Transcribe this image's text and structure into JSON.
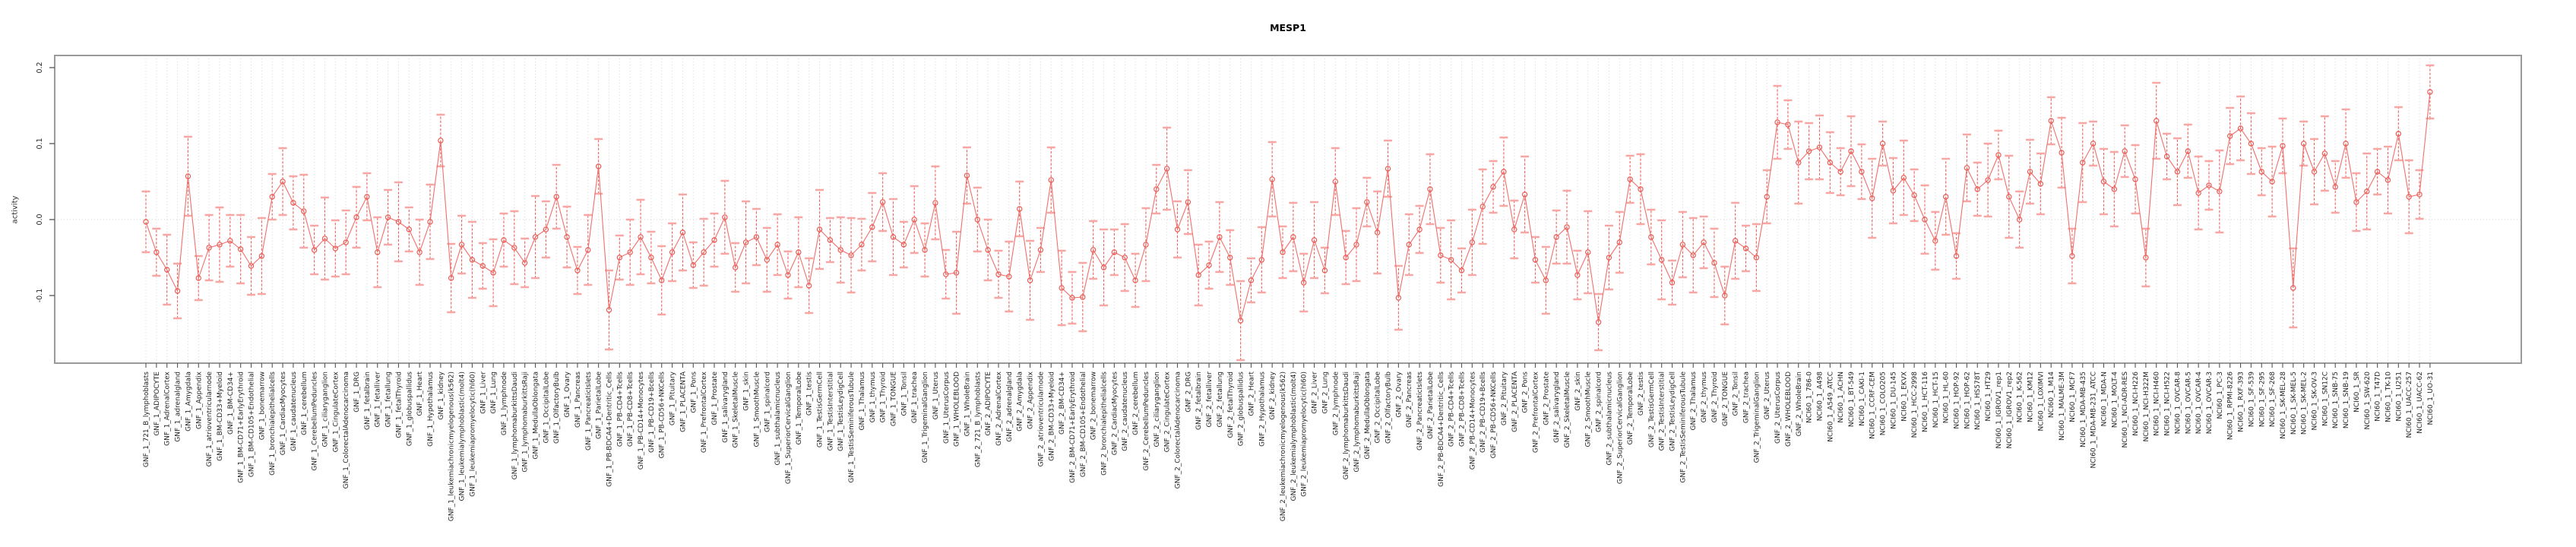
{
  "figure": {
    "title": "MESP1",
    "y_axis_label": "activity"
  },
  "chart_data": {
    "type": "line",
    "title": "MESP1",
    "xlabel": "",
    "ylabel": "activity",
    "ylim": [
      -0.189,
      0.216
    ],
    "yticks": [
      {
        "label": "0.2",
        "value": 0.2
      },
      {
        "label": "0.1",
        "value": 0.1
      },
      {
        "label": "0.0",
        "value": 0.0
      },
      {
        "label": "-0.1",
        "value": -0.1
      }
    ],
    "grid": "dotted vertical gridline per category, dotted horizontal line at 0",
    "legend": "none",
    "marker": "open-circle",
    "series_color": "#e95e59",
    "line_color": "#ef706c",
    "errorbar_color": "#ee615c",
    "errorbar_cap_color": "#f7a6a3",
    "gridline_color": "#d4d4d4",
    "frame_color": "#9a9a9a",
    "categories": [
      "GNF_1_721_B_lymphoblasts",
      "GNF_1_ADIPOCYTE",
      "GNF_1_AdrenalCortex",
      "GNF_1_adrenalgland",
      "GNF_1_Amygdala",
      "GNF_1_Appendix",
      "GNF_1_atrioventricularnode",
      "GNF_1_BM-CD33+Myeloid",
      "GNF_1_BM-CD34+",
      "GNF_1_BM-CD71+EarlyErythroid",
      "GNF_1_BM-CD105+Endothelial",
      "GNF_1_bonemarrow",
      "GNF_1_bronchialepithelialcells",
      "GNF_1_CardiacMyocytes",
      "GNF_1_caudatenucleus",
      "GNF_1_cerebellum",
      "GNF_1_CerebellumPeduncles",
      "GNF_1_ciliaryganglion",
      "GNF_1_CingulateCortex",
      "GNF_1_ColorectalAdenocarcinoma",
      "GNF_1_DRG",
      "GNF_1_fetalbrain",
      "GNF_1_fetalliver",
      "GNF_1_fetallung",
      "GNF_1_fetalThyroid",
      "GNF_1_globuspallidus",
      "GNF_1_Heart",
      "GNF_1_Hypothalamus",
      "GNF_1_kidney",
      "GNF_1_leukemiachronicmyelogenous(k562)",
      "GNF_1_leukemialymphoblastic(molt4)",
      "GNF_1_leukemiapromyelocytic(hl60)",
      "GNF_1_Liver",
      "GNF_1_Lung",
      "GNF_1_lymphnode",
      "GNF_1_lymphomaburkittsDaudi",
      "GNF_1_lymphomaburkittsRaji",
      "GNF_1_MedullaOblongata",
      "GNF_1_OccipitalLobe",
      "GNF_1_OlfactoryBulb",
      "GNF_1_Ovary",
      "GNF_1_Pancreas",
      "GNF_1_PancreaticIslets",
      "GNF_1_ParietalLobe",
      "GNF_1_PB-BDCA4+Dentritic_Cells",
      "GNF_1_PB-CD4+Tcells",
      "GNF_1_PB-CD8+Tcells",
      "GNF_1_PB-CD14+Monocytes",
      "GNF_1_PB-CD19+Bcells",
      "GNF_1_PB-CD56+NKCells",
      "GNF_1_Pituitary",
      "GNF_1_PLACENTA",
      "GNF_1_Pons",
      "GNF_1_PrefrontalCortex",
      "GNF_1_Prostate",
      "GNF_1_salivarygland",
      "GNF_1_SkeletalMuscle",
      "GNF_1_skin",
      "GNF_1_SmoothMuscle",
      "GNF_1_spinalcord",
      "GNF_1_subthalamicnucleus",
      "GNF_1_SuperiorCervicalGanglion",
      "GNF_1_TemporalLobe",
      "GNF_1_testis",
      "GNF_1_TestisGermCell",
      "GNF_1_TestisInterstitial",
      "GNF_1_TestisLeydigCell",
      "GNF_1_TestisSeminiferousTubule",
      "GNF_1_Thalamus",
      "GNF_1_thymus",
      "GNF_1_Thyroid",
      "GNF_1_TONGUE",
      "GNF_1_Tonsil",
      "GNF_1_trachea",
      "GNF_1_TrigeminalGanglion",
      "GNF_1_Uterus",
      "GNF_1_UterusCorpus",
      "GNF_1_WHOLEBLOOD",
      "GNF_1_WholeBrain",
      "GNF_2_721_B_lymphoblasts",
      "GNF_2_ADIPOCYTE",
      "GNF_2_AdrenalCortex",
      "GNF_2_adrenalgland",
      "GNF_2_Amygdala",
      "GNF_2_Appendix",
      "GNF_2_atrioventricularnode",
      "GNF_2_BM-CD33+Myeloid",
      "GNF_2_BM-CD34+",
      "GNF_2_BM-CD71+EarlyErythroid",
      "GNF_2_BM-CD105+Endothelial",
      "GNF_2_bonemarrow",
      "GNF_2_bronchialepithelialcells",
      "GNF_2_CardiacMyocytes",
      "GNF_2_caudatenucleus",
      "GNF_2_cerebellum",
      "GNF_2_CerebellumPeduncles",
      "GNF_2_ciliaryganglion",
      "GNF_2_CingulateCortex",
      "GNF_2_ColorectalAdenocarcinoma",
      "GNF_2_DRG",
      "GNF_2_fetalbrain",
      "GNF_2_fetalliver",
      "GNF_2_fetallung",
      "GNF_2_fetalThyroid",
      "GNF_2_globuspallidus",
      "GNF_2_Heart",
      "GNF_2_Hypothalamus",
      "GNF_2_kidney",
      "GNF_2_leukemiachronicmyelogenous(k562)",
      "GNF_2_leukemialymphoblastic(molt4)",
      "GNF_2_leukemiapromyelocytic(hl60)",
      "GNF_2_Liver",
      "GNF_2_Lung",
      "GNF_2_lymphnode",
      "GNF_2_lymphomaburkittsDaudi",
      "GNF_2_lymphomaburkittsRaji",
      "GNF_2_MedullaOblongata",
      "GNF_2_OccipitalLobe",
      "GNF_2_OlfactoryBulb",
      "GNF_2_Ovary",
      "GNF_2_Pancreas",
      "GNF_2_PancreaticIslets",
      "GNF_2_ParietalLobe",
      "GNF_2_PB-BDCA4+Dentritic_Cells",
      "GNF_2_PB-CD4+Tcells",
      "GNF_2_PB-CD8+Tcells",
      "GNF_2_PB-CD14+Monocytes",
      "GNF_2_PB-CD19+Bcells",
      "GNF_2_PB-CD56+NKCells",
      "GNF_2_Pituitary",
      "GNF_2_PLACENTA",
      "GNF_2_Pons",
      "GNF_2_PrefrontalCortex",
      "GNF_2_Prostate",
      "GNF_2_salivarygland",
      "GNF_2_SkeletalMuscle",
      "GNF_2_skin",
      "GNF_2_SmoothMuscle",
      "GNF_2_spinalcord",
      "GNF_2_subthalamicnucleus",
      "GNF_2_SuperiorCervicalGanglion",
      "GNF_2_TemporalLobe",
      "GNF_2_testis",
      "GNF_2_TestisGermCell",
      "GNF_2_TestisInterstitial",
      "GNF_2_TestisLeydigCell",
      "GNF_2_TestisSeminiferousTubule",
      "GNF_2_Thalamus",
      "GNF_2_thymus",
      "GNF_2_Thyroid",
      "GNF_2_TONGUE",
      "GNF_2_Tonsil",
      "GNF_2_trachea",
      "GNF_2_TrigeminalGanglion",
      "GNF_2_Uterus",
      "GNF_2_UterusCorpus",
      "GNF_2_WHOLEBLOOD",
      "GNF_2_WholeBrain",
      "NCI60_1_786-0",
      "NCI60_1_A498",
      "NCI60_1_A549_ATCC",
      "NCI60_1_ACHN",
      "NCI60_1_BT-549",
      "NCI60_1_CAKI-1",
      "NCI60_1_CCRF-CEM",
      "NCI60_1_COLO205",
      "NCI60_1_DU-145",
      "NCI60_1_EKVX",
      "NCI60_1_HCC-2998",
      "NCI60_1_HCT-116",
      "NCI60_1_HCT-15",
      "NCI60_1_HL-60",
      "NCI60_1_HOP-92",
      "NCI60_1_HOP-62",
      "NCI60_1_HS578T",
      "NCI60_1_HT29",
      "NCI60_1_IGROV1_rep1",
      "NCI60_1_IGROV1_rep2",
      "NCI60_1_K-562",
      "NCI60_1_KM12",
      "NCI60_1_LOXIMVI",
      "NCI60_1_M14",
      "NCI60_1_MALME-3M",
      "NCI60_1_MCF7",
      "NCI60_1_MDA-MB-435",
      "NCI60_1_MDA-MB-231_ATCC",
      "NCI60_1_MDA-N",
      "NCI60_1_MOLT-4",
      "NCI60_1_NCI-ADR-RES",
      "NCI60_1_NCI-H226",
      "NCI60_1_NCI-H322M",
      "NCI60_1_NCI-H460",
      "NCI60_1_NCI-H522",
      "NCI60_1_OVCAR-8",
      "NCI60_1_OVCAR-5",
      "NCI60_1_OVCAR-4",
      "NCI60_1_OVCAR-3",
      "NCI60_1_PC-3",
      "NCI60_1_RPMI-8226",
      "NCI60_1_RXF-393",
      "NCI60_1_SF-539",
      "NCI60_1_SF-295",
      "NCI60_1_SF-268",
      "NCI60_1_SK-MEL-28",
      "NCI60_1_SK-MEL-5",
      "NCI60_1_SK-MEL-2",
      "NCI60_1_SK-OV-3",
      "NCI60_1_SN12C",
      "NCI60_1_SNB-75",
      "NCI60_1_SNB-19",
      "NCI60_1_SR",
      "NCI60_1_SW-620",
      "NCI60_1_T47D",
      "NCI60_1_TK-10",
      "NCI60_1_U251",
      "NCI60_1_UACC-257",
      "NCI60_1_UACC-62",
      "NCI60_1_UO-31"
    ],
    "values": [
      -0.003,
      -0.043,
      -0.066,
      -0.094,
      0.057,
      -0.077,
      -0.037,
      -0.033,
      -0.028,
      -0.039,
      -0.061,
      -0.048,
      0.03,
      0.05,
      0.022,
      0.011,
      -0.04,
      -0.025,
      -0.038,
      -0.03,
      0.003,
      0.03,
      -0.043,
      0.003,
      -0.003,
      -0.013,
      -0.043,
      -0.003,
      0.104,
      -0.077,
      -0.033,
      -0.053,
      -0.061,
      -0.07,
      -0.027,
      -0.037,
      -0.057,
      -0.023,
      -0.013,
      0.03,
      -0.023,
      -0.067,
      -0.04,
      0.07,
      -0.119,
      -0.05,
      -0.043,
      -0.023,
      -0.05,
      -0.08,
      -0.043,
      -0.017,
      -0.06,
      -0.043,
      -0.027,
      0.003,
      -0.063,
      -0.03,
      -0.023,
      -0.053,
      -0.033,
      -0.073,
      -0.043,
      -0.087,
      -0.013,
      -0.027,
      -0.04,
      -0.047,
      -0.033,
      -0.01,
      0.023,
      -0.023,
      -0.033,
      0.0,
      -0.04,
      0.022,
      -0.072,
      -0.07,
      0.058,
      0.0,
      -0.04,
      -0.072,
      -0.075,
      0.014,
      -0.08,
      -0.04,
      0.052,
      -0.09,
      -0.103,
      -0.102,
      -0.04,
      -0.063,
      -0.043,
      -0.05,
      -0.08,
      -0.033,
      0.04,
      0.067,
      -0.013,
      0.023,
      -0.073,
      -0.06,
      -0.023,
      -0.05,
      -0.133,
      -0.08,
      -0.053,
      0.053,
      -0.043,
      -0.023,
      -0.083,
      -0.027,
      -0.067,
      0.05,
      -0.05,
      -0.033,
      0.023,
      -0.017,
      0.067,
      -0.103,
      -0.033,
      -0.013,
      0.04,
      -0.047,
      -0.053,
      -0.067,
      -0.03,
      0.017,
      0.043,
      0.063,
      -0.013,
      0.033,
      -0.053,
      -0.08,
      -0.023,
      -0.01,
      -0.073,
      -0.043,
      -0.135,
      -0.05,
      -0.03,
      0.053,
      0.04,
      -0.023,
      -0.053,
      -0.083,
      -0.033,
      -0.047,
      -0.03,
      -0.057,
      -0.1,
      -0.028,
      -0.038,
      -0.05,
      0.03,
      0.128,
      0.125,
      0.075,
      0.09,
      0.095,
      0.075,
      0.063,
      0.09,
      0.063,
      0.028,
      0.1,
      0.038,
      0.055,
      0.032,
      0.0,
      -0.028,
      0.03,
      -0.048,
      0.068,
      0.04,
      0.052,
      0.085,
      0.03,
      0.0,
      0.063,
      0.047,
      0.13,
      0.088,
      -0.048,
      0.075,
      0.1,
      0.05,
      0.04,
      0.09,
      0.053,
      -0.05,
      0.13,
      0.083,
      0.063,
      0.09,
      0.035,
      0.045,
      0.037,
      0.11,
      0.12,
      0.1,
      0.063,
      0.05,
      0.097,
      -0.09,
      0.1,
      0.063,
      0.087,
      0.043,
      0.1,
      0.023,
      0.037,
      0.063,
      0.052,
      0.113,
      0.03,
      0.033,
      0.168
    ],
    "errors": [
      0.04,
      0.031,
      0.046,
      0.036,
      0.052,
      0.029,
      0.043,
      0.049,
      0.034,
      0.045,
      0.038,
      0.05,
      0.03,
      0.044,
      0.035,
      0.048,
      0.032,
      0.054,
      0.037,
      0.042,
      0.04,
      0.031,
      0.046,
      0.036,
      0.052,
      0.029,
      0.043,
      0.049,
      0.034,
      0.045,
      0.038,
      0.05,
      0.03,
      0.044,
      0.035,
      0.048,
      0.032,
      0.054,
      0.037,
      0.042,
      0.04,
      0.031,
      0.046,
      0.036,
      0.052,
      0.029,
      0.043,
      0.049,
      0.034,
      0.045,
      0.038,
      0.05,
      0.03,
      0.044,
      0.035,
      0.048,
      0.032,
      0.054,
      0.037,
      0.042,
      0.04,
      0.031,
      0.046,
      0.036,
      0.052,
      0.029,
      0.043,
      0.049,
      0.034,
      0.045,
      0.038,
      0.05,
      0.03,
      0.044,
      0.035,
      0.048,
      0.032,
      0.054,
      0.037,
      0.042,
      0.04,
      0.031,
      0.046,
      0.036,
      0.052,
      0.029,
      0.043,
      0.049,
      0.034,
      0.045,
      0.038,
      0.05,
      0.03,
      0.044,
      0.035,
      0.048,
      0.032,
      0.054,
      0.037,
      0.042,
      0.04,
      0.031,
      0.046,
      0.036,
      0.052,
      0.029,
      0.043,
      0.049,
      0.034,
      0.045,
      0.038,
      0.05,
      0.03,
      0.044,
      0.035,
      0.048,
      0.032,
      0.054,
      0.037,
      0.042,
      0.04,
      0.031,
      0.046,
      0.036,
      0.052,
      0.029,
      0.043,
      0.049,
      0.034,
      0.045,
      0.038,
      0.05,
      0.03,
      0.044,
      0.035,
      0.048,
      0.032,
      0.054,
      0.037,
      0.042,
      0.04,
      0.031,
      0.046,
      0.036,
      0.052,
      0.029,
      0.043,
      0.049,
      0.034,
      0.045,
      0.038,
      0.05,
      0.03,
      0.044,
      0.035,
      0.048,
      0.032,
      0.054,
      0.037,
      0.042,
      0.04,
      0.031,
      0.046,
      0.036,
      0.052,
      0.029,
      0.043,
      0.049,
      0.034,
      0.045,
      0.038,
      0.05,
      0.03,
      0.044,
      0.035,
      0.048,
      0.032,
      0.054,
      0.037,
      0.042,
      0.04,
      0.031,
      0.046,
      0.036,
      0.052,
      0.029,
      0.043,
      0.049,
      0.034,
      0.045,
      0.038,
      0.05,
      0.03,
      0.044,
      0.035,
      0.048,
      0.032,
      0.054,
      0.037,
      0.042,
      0.04,
      0.031,
      0.046,
      0.036,
      0.052,
      0.029,
      0.043,
      0.049,
      0.034,
      0.045,
      0.038,
      0.05,
      0.03,
      0.044,
      0.035,
      0.048,
      0.032,
      0.035
    ]
  }
}
